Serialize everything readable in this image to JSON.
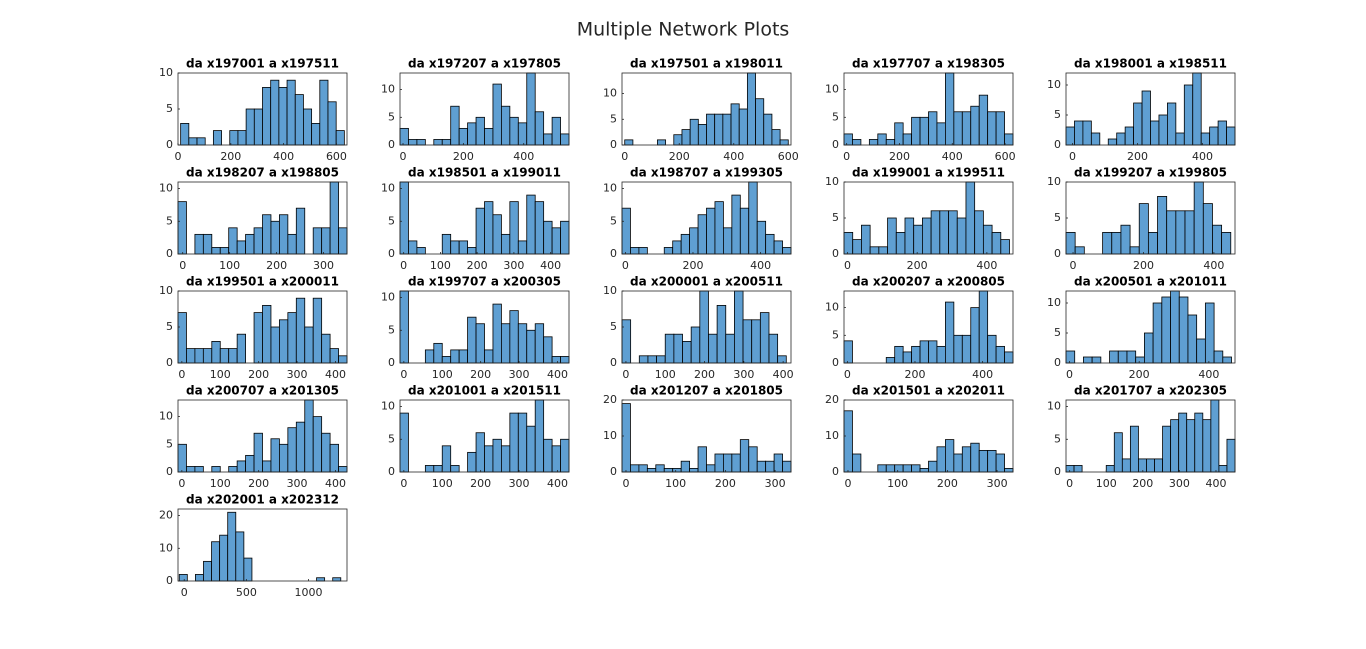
{
  "title": "Multiple Network Plots",
  "chart_data": [
    {
      "type": "histogram",
      "title": "da x197001 a x197511",
      "color": "#5f9fd2",
      "bins": [
        10,
        41,
        72,
        103,
        134,
        165,
        196,
        227,
        258,
        289,
        320,
        351,
        382,
        413,
        444,
        475,
        506,
        537,
        568,
        599,
        630
      ],
      "values": [
        3,
        1,
        1,
        0,
        2,
        0,
        2,
        2,
        5,
        5,
        8,
        9,
        8,
        9,
        7,
        5,
        3,
        9,
        6,
        2
      ],
      "xlim": [
        0,
        640
      ],
      "ylim": [
        0,
        10
      ],
      "xticks": [
        0,
        200,
        400,
        600
      ],
      "yticks": [
        0,
        5,
        10
      ]
    },
    {
      "type": "histogram",
      "title": "da x197207 a x197805",
      "color": "#5f9fd2",
      "bins": [
        -10,
        18,
        46,
        74,
        102,
        130,
        158,
        186,
        214,
        242,
        270,
        298,
        326,
        354,
        382,
        410,
        438,
        466,
        494,
        522,
        550
      ],
      "values": [
        3,
        1,
        1,
        0,
        1,
        1,
        7,
        3,
        4,
        5,
        3,
        11,
        7,
        5,
        4,
        13,
        6,
        2,
        5,
        2
      ],
      "xlim": [
        -10,
        550
      ],
      "ylim": [
        0,
        13
      ],
      "xticks": [
        0,
        200,
        400
      ],
      "yticks": [
        0,
        5,
        10
      ]
    },
    {
      "type": "histogram",
      "title": "da x197501 a x198011",
      "color": "#5f9fd2",
      "bins": [
        0,
        30,
        60,
        90,
        120,
        150,
        180,
        210,
        240,
        270,
        300,
        330,
        360,
        390,
        420,
        450,
        480,
        510,
        540,
        570,
        600
      ],
      "values": [
        1,
        0,
        0,
        0,
        1,
        0,
        2,
        3,
        5,
        4,
        6,
        6,
        6,
        8,
        7,
        14,
        9,
        6,
        3,
        1
      ],
      "xlim": [
        -10,
        610
      ],
      "ylim": [
        0,
        14
      ],
      "xticks": [
        0,
        200,
        400,
        600
      ],
      "yticks": [
        0,
        5,
        10
      ]
    },
    {
      "type": "histogram",
      "title": "da x197707 a x198305",
      "color": "#5f9fd2",
      "bins": [
        -10,
        22,
        54,
        86,
        118,
        150,
        182,
        214,
        246,
        278,
        310,
        342,
        374,
        406,
        438,
        470,
        502,
        534,
        566,
        598,
        630
      ],
      "values": [
        2,
        1,
        0,
        1,
        2,
        1,
        4,
        2,
        5,
        5,
        6,
        4,
        13,
        6,
        6,
        7,
        9,
        6,
        6,
        2
      ],
      "xlim": [
        -10,
        630
      ],
      "ylim": [
        0,
        13
      ],
      "xticks": [
        0,
        200,
        400,
        600
      ],
      "yticks": [
        0,
        5,
        10
      ]
    },
    {
      "type": "histogram",
      "title": "da x198001 a x198511",
      "color": "#5f9fd2",
      "bins": [
        -20,
        6,
        32,
        58,
        84,
        110,
        136,
        162,
        188,
        214,
        240,
        266,
        292,
        318,
        344,
        370,
        396,
        422,
        448,
        474,
        500
      ],
      "values": [
        3,
        4,
        4,
        2,
        0,
        1,
        2,
        3,
        7,
        9,
        4,
        5,
        7,
        2,
        10,
        12,
        2,
        3,
        4,
        3
      ],
      "xlim": [
        -20,
        500
      ],
      "ylim": [
        0,
        12
      ],
      "xticks": [
        0,
        200,
        400
      ],
      "yticks": [
        0,
        5,
        10
      ]
    },
    {
      "type": "histogram",
      "title": "da x198207 a x198805",
      "color": "#5f9fd2",
      "bins": [
        -10,
        8,
        26,
        44,
        62,
        80,
        98,
        116,
        134,
        152,
        170,
        188,
        206,
        224,
        242,
        260,
        278,
        296,
        314,
        332,
        350
      ],
      "values": [
        8,
        0,
        3,
        3,
        1,
        1,
        4,
        2,
        3,
        4,
        6,
        5,
        6,
        3,
        7,
        0,
        4,
        4,
        11,
        4
      ],
      "xlim": [
        -10,
        350
      ],
      "ylim": [
        0,
        11
      ],
      "xticks": [
        0,
        100,
        200,
        300
      ],
      "yticks": [
        0,
        5,
        10
      ]
    },
    {
      "type": "histogram",
      "title": "da x198501 a x199011",
      "color": "#5f9fd2",
      "bins": [
        -10,
        13,
        36,
        59,
        82,
        105,
        128,
        151,
        174,
        197,
        220,
        243,
        266,
        289,
        312,
        335,
        358,
        381,
        404,
        427,
        450
      ],
      "values": [
        11,
        2,
        1,
        0,
        0,
        3,
        2,
        2,
        1,
        7,
        8,
        6,
        3,
        8,
        2,
        9,
        8,
        5,
        4,
        5
      ],
      "xlim": [
        -10,
        450
      ],
      "ylim": [
        0,
        11
      ],
      "xticks": [
        0,
        100,
        200,
        300,
        400
      ],
      "yticks": [
        0,
        5,
        10
      ]
    },
    {
      "type": "histogram",
      "title": "da x198707 a x199305",
      "color": "#5f9fd2",
      "bins": [
        -10,
        15,
        40,
        65,
        90,
        115,
        140,
        165,
        190,
        215,
        240,
        265,
        290,
        315,
        340,
        365,
        390,
        415,
        440,
        465,
        490
      ],
      "values": [
        7,
        1,
        1,
        0,
        0,
        1,
        2,
        3,
        4,
        6,
        7,
        8,
        4,
        9,
        7,
        11,
        5,
        3,
        2,
        1
      ],
      "xlim": [
        -10,
        490
      ],
      "ylim": [
        0,
        11
      ],
      "xticks": [
        0,
        200,
        400
      ],
      "yticks": [
        0,
        5,
        10
      ]
    },
    {
      "type": "histogram",
      "title": "da x199001 a x199511",
      "color": "#5f9fd2",
      "bins": [
        -10,
        15,
        40,
        65,
        90,
        115,
        140,
        165,
        190,
        215,
        240,
        265,
        290,
        315,
        340,
        365,
        390,
        415,
        440,
        465
      ],
      "values": [
        3,
        2,
        4,
        1,
        1,
        5,
        3,
        5,
        4,
        5,
        6,
        6,
        6,
        5,
        10,
        6,
        4,
        3,
        2
      ],
      "xlim": [
        -10,
        475
      ],
      "ylim": [
        0,
        10
      ],
      "xticks": [
        0,
        200,
        400
      ],
      "yticks": [
        0,
        5,
        10
      ]
    },
    {
      "type": "histogram",
      "title": "da x199207 a x199805",
      "color": "#5f9fd2",
      "bins": [
        -20,
        6,
        32,
        58,
        84,
        110,
        136,
        162,
        188,
        214,
        240,
        266,
        292,
        318,
        344,
        370,
        396,
        422,
        448
      ],
      "values": [
        3,
        1,
        0,
        0,
        3,
        3,
        4,
        1,
        7,
        3,
        8,
        6,
        6,
        6,
        10,
        7,
        4,
        3
      ],
      "xlim": [
        -20,
        460
      ],
      "ylim": [
        0,
        10
      ],
      "xticks": [
        0,
        200,
        400
      ],
      "yticks": [
        0,
        5,
        10
      ]
    },
    {
      "type": "histogram",
      "title": "da x199501 a x200011",
      "color": "#5f9fd2",
      "bins": [
        -10,
        12,
        34,
        56,
        78,
        100,
        122,
        144,
        166,
        188,
        210,
        232,
        254,
        276,
        298,
        320,
        342,
        364,
        386,
        408,
        430
      ],
      "values": [
        7,
        2,
        2,
        2,
        3,
        2,
        2,
        4,
        0,
        7,
        8,
        5,
        6,
        7,
        9,
        5,
        9,
        4,
        2,
        1
      ],
      "xlim": [
        -10,
        430
      ],
      "ylim": [
        0,
        10
      ],
      "xticks": [
        0,
        100,
        200,
        300,
        400
      ],
      "yticks": [
        0,
        5,
        10
      ]
    },
    {
      "type": "histogram",
      "title": "da x199707 a x200305",
      "color": "#5f9fd2",
      "bins": [
        -10,
        12,
        34,
        56,
        78,
        100,
        122,
        144,
        166,
        188,
        210,
        232,
        254,
        276,
        298,
        320,
        342,
        364,
        386,
        408,
        430
      ],
      "values": [
        11,
        0,
        0,
        2,
        3,
        1,
        2,
        2,
        7,
        6,
        2,
        9,
        6,
        8,
        6,
        5,
        6,
        4,
        1,
        1
      ],
      "xlim": [
        -10,
        430
      ],
      "ylim": [
        0,
        11
      ],
      "xticks": [
        0,
        100,
        200,
        300,
        400
      ],
      "yticks": [
        0,
        5,
        10
      ]
    },
    {
      "type": "histogram",
      "title": "da x200001 a x200511",
      "color": "#5f9fd2",
      "bins": [
        -10,
        12,
        34,
        56,
        78,
        100,
        122,
        144,
        166,
        188,
        210,
        232,
        254,
        276,
        298,
        320,
        342,
        364,
        386,
        408
      ],
      "values": [
        6,
        0,
        1,
        1,
        1,
        4,
        4,
        3,
        5,
        10,
        4,
        8,
        4,
        10,
        6,
        6,
        7,
        4,
        1
      ],
      "xlim": [
        -10,
        420
      ],
      "ylim": [
        0,
        10
      ],
      "xticks": [
        0,
        100,
        200,
        300,
        400
      ],
      "yticks": [
        0,
        5,
        10
      ]
    },
    {
      "type": "histogram",
      "title": "da x200207 a x200805",
      "color": "#5f9fd2",
      "bins": [
        -10,
        15,
        40,
        65,
        90,
        115,
        140,
        165,
        190,
        215,
        240,
        265,
        290,
        315,
        340,
        365,
        390,
        415,
        440,
        465,
        490
      ],
      "values": [
        4,
        0,
        0,
        0,
        0,
        1,
        3,
        2,
        3,
        4,
        4,
        3,
        11,
        5,
        5,
        10,
        13,
        5,
        3,
        2
      ],
      "xlim": [
        -10,
        490
      ],
      "ylim": [
        0,
        13
      ],
      "xticks": [
        0,
        200,
        400
      ],
      "yticks": [
        0,
        5,
        10
      ]
    },
    {
      "type": "histogram",
      "title": "da x200501 a x201011",
      "color": "#5f9fd2",
      "bins": [
        -10,
        15,
        40,
        65,
        90,
        115,
        140,
        165,
        190,
        215,
        240,
        265,
        290,
        315,
        340,
        365,
        390,
        415,
        440,
        465
      ],
      "values": [
        2,
        0,
        1,
        1,
        0,
        2,
        2,
        2,
        1,
        5,
        10,
        11,
        12,
        11,
        8,
        4,
        10,
        2,
        1
      ],
      "xlim": [
        -10,
        475
      ],
      "ylim": [
        0,
        12
      ],
      "xticks": [
        0,
        200,
        400
      ],
      "yticks": [
        0,
        5,
        10
      ]
    },
    {
      "type": "histogram",
      "title": "da x200707 a x201305",
      "color": "#5f9fd2",
      "bins": [
        -10,
        12,
        34,
        56,
        78,
        100,
        122,
        144,
        166,
        188,
        210,
        232,
        254,
        276,
        298,
        320,
        342,
        364,
        386,
        408,
        430
      ],
      "values": [
        5,
        1,
        1,
        0,
        1,
        0,
        1,
        2,
        3,
        7,
        2,
        6,
        5,
        8,
        9,
        13,
        10,
        7,
        5,
        1
      ],
      "xlim": [
        -10,
        430
      ],
      "ylim": [
        0,
        13
      ],
      "xticks": [
        0,
        100,
        200,
        300,
        400
      ],
      "yticks": [
        0,
        5,
        10
      ]
    },
    {
      "type": "histogram",
      "title": "da x201001 a x201511",
      "color": "#5f9fd2",
      "bins": [
        -10,
        12,
        34,
        56,
        78,
        100,
        122,
        144,
        166,
        188,
        210,
        232,
        254,
        276,
        298,
        320,
        342,
        364,
        386,
        408,
        430
      ],
      "values": [
        9,
        0,
        0,
        1,
        1,
        4,
        1,
        0,
        3,
        6,
        4,
        5,
        4,
        9,
        9,
        7,
        11,
        5,
        4,
        5
      ],
      "xlim": [
        -10,
        430
      ],
      "ylim": [
        0,
        11
      ],
      "xticks": [
        0,
        100,
        200,
        300,
        400
      ],
      "yticks": [
        0,
        5,
        10
      ]
    },
    {
      "type": "histogram",
      "title": "da x201207 a x201805",
      "color": "#5f9fd2",
      "bins": [
        -8,
        9,
        26,
        43,
        60,
        77,
        94,
        111,
        128,
        145,
        162,
        179,
        196,
        213,
        230,
        247,
        264,
        281,
        298,
        315,
        332
      ],
      "values": [
        19,
        2,
        2,
        1,
        2,
        1,
        1,
        3,
        1,
        7,
        2,
        5,
        5,
        5,
        9,
        7,
        3,
        3,
        5,
        3
      ],
      "xlim": [
        -8,
        332
      ],
      "ylim": [
        0,
        20
      ],
      "xticks": [
        0,
        100,
        200,
        300
      ],
      "yticks": [
        0,
        10,
        20
      ]
    },
    {
      "type": "histogram",
      "title": "da x201501 a x202011",
      "color": "#5f9fd2",
      "bins": [
        -8,
        9,
        26,
        43,
        60,
        77,
        94,
        111,
        128,
        145,
        162,
        179,
        196,
        213,
        230,
        247,
        264,
        281,
        298,
        315,
        332
      ],
      "values": [
        17,
        5,
        0,
        0,
        2,
        2,
        2,
        2,
        2,
        1,
        3,
        7,
        9,
        5,
        7,
        8,
        6,
        6,
        5,
        1
      ],
      "xlim": [
        -8,
        332
      ],
      "ylim": [
        0,
        20
      ],
      "xticks": [
        0,
        100,
        200,
        300
      ],
      "yticks": [
        0,
        10,
        20
      ]
    },
    {
      "type": "histogram",
      "title": "da x201707 a x202305",
      "color": "#5f9fd2",
      "bins": [
        -10,
        12,
        34,
        56,
        78,
        100,
        122,
        144,
        166,
        188,
        210,
        232,
        254,
        276,
        298,
        320,
        342,
        364,
        386,
        408,
        430,
        452
      ],
      "values": [
        1,
        1,
        0,
        0,
        0,
        1,
        6,
        2,
        7,
        2,
        2,
        2,
        7,
        8,
        9,
        8,
        9,
        8,
        11,
        1,
        5
      ],
      "xlim": [
        -10,
        452
      ],
      "ylim": [
        0,
        11
      ],
      "xticks": [
        0,
        100,
        200,
        300,
        400
      ],
      "yticks": [
        0,
        5,
        10
      ]
    },
    {
      "type": "histogram",
      "title": "da x202001 a x202312",
      "color": "#5f9fd2",
      "bins": [
        -40,
        25,
        90,
        155,
        220,
        285,
        350,
        415,
        480,
        545,
        610,
        675,
        740,
        805,
        870,
        935,
        1000,
        1065,
        1130,
        1195,
        1260
      ],
      "values": [
        2,
        0,
        2,
        6,
        12,
        14,
        21,
        15,
        7,
        0,
        0,
        0,
        0,
        0,
        0,
        0,
        0,
        1,
        0,
        1
      ],
      "xlim": [
        -50,
        1310
      ],
      "ylim": [
        0,
        22
      ],
      "xticks": [
        0,
        500,
        1000
      ],
      "yticks": [
        0,
        10,
        20
      ]
    }
  ]
}
